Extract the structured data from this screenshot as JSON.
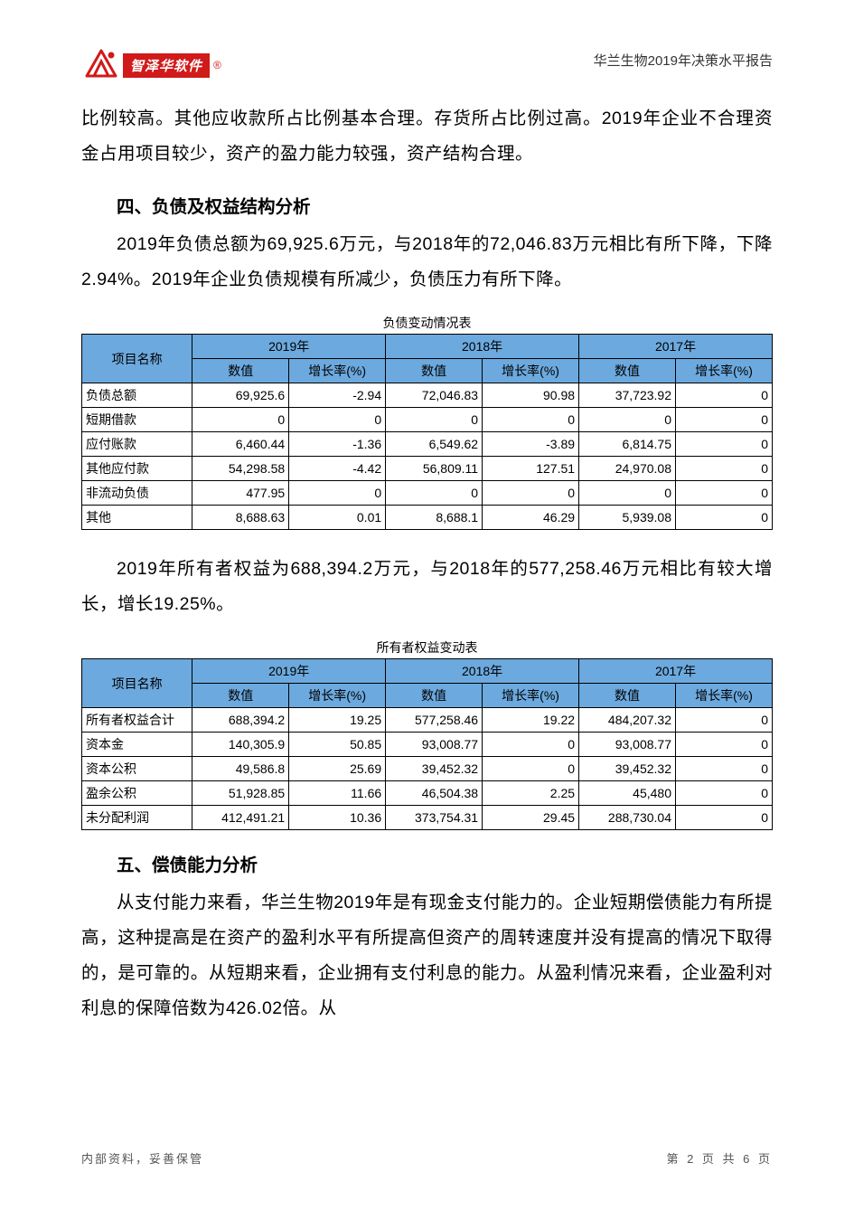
{
  "header": {
    "logo_text": "智泽华软件",
    "doc_title": "华兰生物2019年决策水平报告"
  },
  "colors": {
    "brand_red": "#d11a1a",
    "table_header_bg": "#6ca9de",
    "text": "#000000",
    "border": "#000000"
  },
  "intro_paragraph": "比例较高。其他应收款所占比例基本合理。存货所占比例过高。2019年企业不合理资金占用项目较少，资产的盈力能力较强，资产结构合理。",
  "section4": {
    "title": "四、负债及权益结构分析",
    "para1": "2019年负债总额为69,925.6万元，与2018年的72,046.83万元相比有所下降，下降2.94%。2019年企业负债规模有所减少，负债压力有所下降。",
    "table1_caption": "负债变动情况表",
    "para2": "2019年所有者权益为688,394.2万元，与2018年的577,258.46万元相比有较大增长，增长19.25%。",
    "table2_caption": "所有者权益变动表"
  },
  "section5": {
    "title": "五、偿债能力分析",
    "para1": "从支付能力来看，华兰生物2019年是有现金支付能力的。企业短期偿债能力有所提高，这种提高是在资产的盈利水平有所提高但资产的周转速度并没有提高的情况下取得的，是可靠的。从短期来看，企业拥有支付利息的能力。从盈利情况来看，企业盈利对利息的保障倍数为426.02倍。从"
  },
  "table_common": {
    "col_name_header": "项目名称",
    "year_headers": [
      "2019年",
      "2018年",
      "2017年"
    ],
    "sub_headers": [
      "数值",
      "增长率(%)"
    ]
  },
  "liability_table": {
    "rows": [
      {
        "name": "负债总额",
        "v19": "69,925.6",
        "g19": "-2.94",
        "v18": "72,046.83",
        "g18": "90.98",
        "v17": "37,723.92",
        "g17": "0"
      },
      {
        "name": "短期借款",
        "v19": "0",
        "g19": "0",
        "v18": "0",
        "g18": "0",
        "v17": "0",
        "g17": "0"
      },
      {
        "name": "应付账款",
        "v19": "6,460.44",
        "g19": "-1.36",
        "v18": "6,549.62",
        "g18": "-3.89",
        "v17": "6,814.75",
        "g17": "0"
      },
      {
        "name": "其他应付款",
        "v19": "54,298.58",
        "g19": "-4.42",
        "v18": "56,809.11",
        "g18": "127.51",
        "v17": "24,970.08",
        "g17": "0"
      },
      {
        "name": "非流动负债",
        "v19": "477.95",
        "g19": "0",
        "v18": "0",
        "g18": "0",
        "v17": "0",
        "g17": "0"
      },
      {
        "name": "其他",
        "v19": "8,688.63",
        "g19": "0.01",
        "v18": "8,688.1",
        "g18": "46.29",
        "v17": "5,939.08",
        "g17": "0"
      }
    ]
  },
  "equity_table": {
    "rows": [
      {
        "name": "所有者权益合计",
        "v19": "688,394.2",
        "g19": "19.25",
        "v18": "577,258.46",
        "g18": "19.22",
        "v17": "484,207.32",
        "g17": "0"
      },
      {
        "name": "资本金",
        "v19": "140,305.9",
        "g19": "50.85",
        "v18": "93,008.77",
        "g18": "0",
        "v17": "93,008.77",
        "g17": "0"
      },
      {
        "name": "资本公积",
        "v19": "49,586.8",
        "g19": "25.69",
        "v18": "39,452.32",
        "g18": "0",
        "v17": "39,452.32",
        "g17": "0"
      },
      {
        "name": "盈余公积",
        "v19": "51,928.85",
        "g19": "11.66",
        "v18": "46,504.38",
        "g18": "2.25",
        "v17": "45,480",
        "g17": "0"
      },
      {
        "name": "未分配利润",
        "v19": "412,491.21",
        "g19": "10.36",
        "v18": "373,754.31",
        "g18": "29.45",
        "v17": "288,730.04",
        "g17": "0"
      }
    ]
  },
  "footer": {
    "left": "内部资料，妥善保管",
    "right": "第 2 页  共 6 页"
  }
}
